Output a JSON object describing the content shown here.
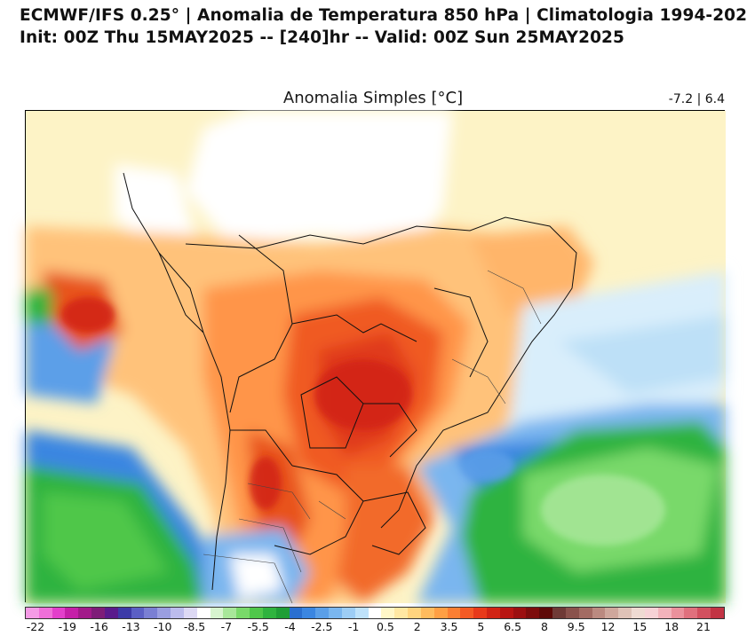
{
  "header": {
    "line1": "ECMWF/IFS 0.25° | Anomalia de Temperatura 850 hPa | Climatologia 1994-202",
    "line2": "Init: 00Z Thu 15MAY2025 -- [240]hr -- Valid: 00Z Sun 25MAY2025"
  },
  "map": {
    "title": "Anomalia Simples [°C]",
    "range_label": "-7.2 | 6.4"
  },
  "colorbar": {
    "colors": [
      "#f49be6",
      "#ef6fd9",
      "#e33fcb",
      "#c51fa8",
      "#a21a8a",
      "#7e1c78",
      "#5a1a8c",
      "#3d3aa7",
      "#5b5fc4",
      "#7a7fd3",
      "#9a9ee0",
      "#bcbcec",
      "#ddd9f4",
      "#ffffff",
      "#d7f4cf",
      "#a8e79a",
      "#79d96a",
      "#4fc74a",
      "#2fb33f",
      "#1f9e36",
      "#2a6fd0",
      "#3b86e1",
      "#5b9fe8",
      "#7ab6ef",
      "#9dcdf5",
      "#bfe2fa",
      "#ffffff",
      "#fff7c8",
      "#ffe8a3",
      "#ffd47f",
      "#ffbb5e",
      "#ff9f44",
      "#fb7f33",
      "#f45a24",
      "#e83a1a",
      "#d12414",
      "#b81512",
      "#9c0f10",
      "#7d0c0c",
      "#5e0a08",
      "#6f3a36",
      "#8a524c",
      "#a36b63",
      "#bb8a80",
      "#cfa79c",
      "#dfc2b7",
      "#efdad2",
      "#f7d2d6",
      "#f2b3bb",
      "#eb919c",
      "#e0707d",
      "#d2505f",
      "#c23444"
    ],
    "tick_labels": [
      "-22",
      "-19",
      "-16",
      "-13",
      "-10",
      "-8.5",
      "-7",
      "-5.5",
      "-4",
      "-2.5",
      "-1",
      "0.5",
      "2",
      "3.5",
      "5",
      "6.5",
      "8",
      "9.5",
      "12",
      "15",
      "18",
      "21"
    ]
  }
}
